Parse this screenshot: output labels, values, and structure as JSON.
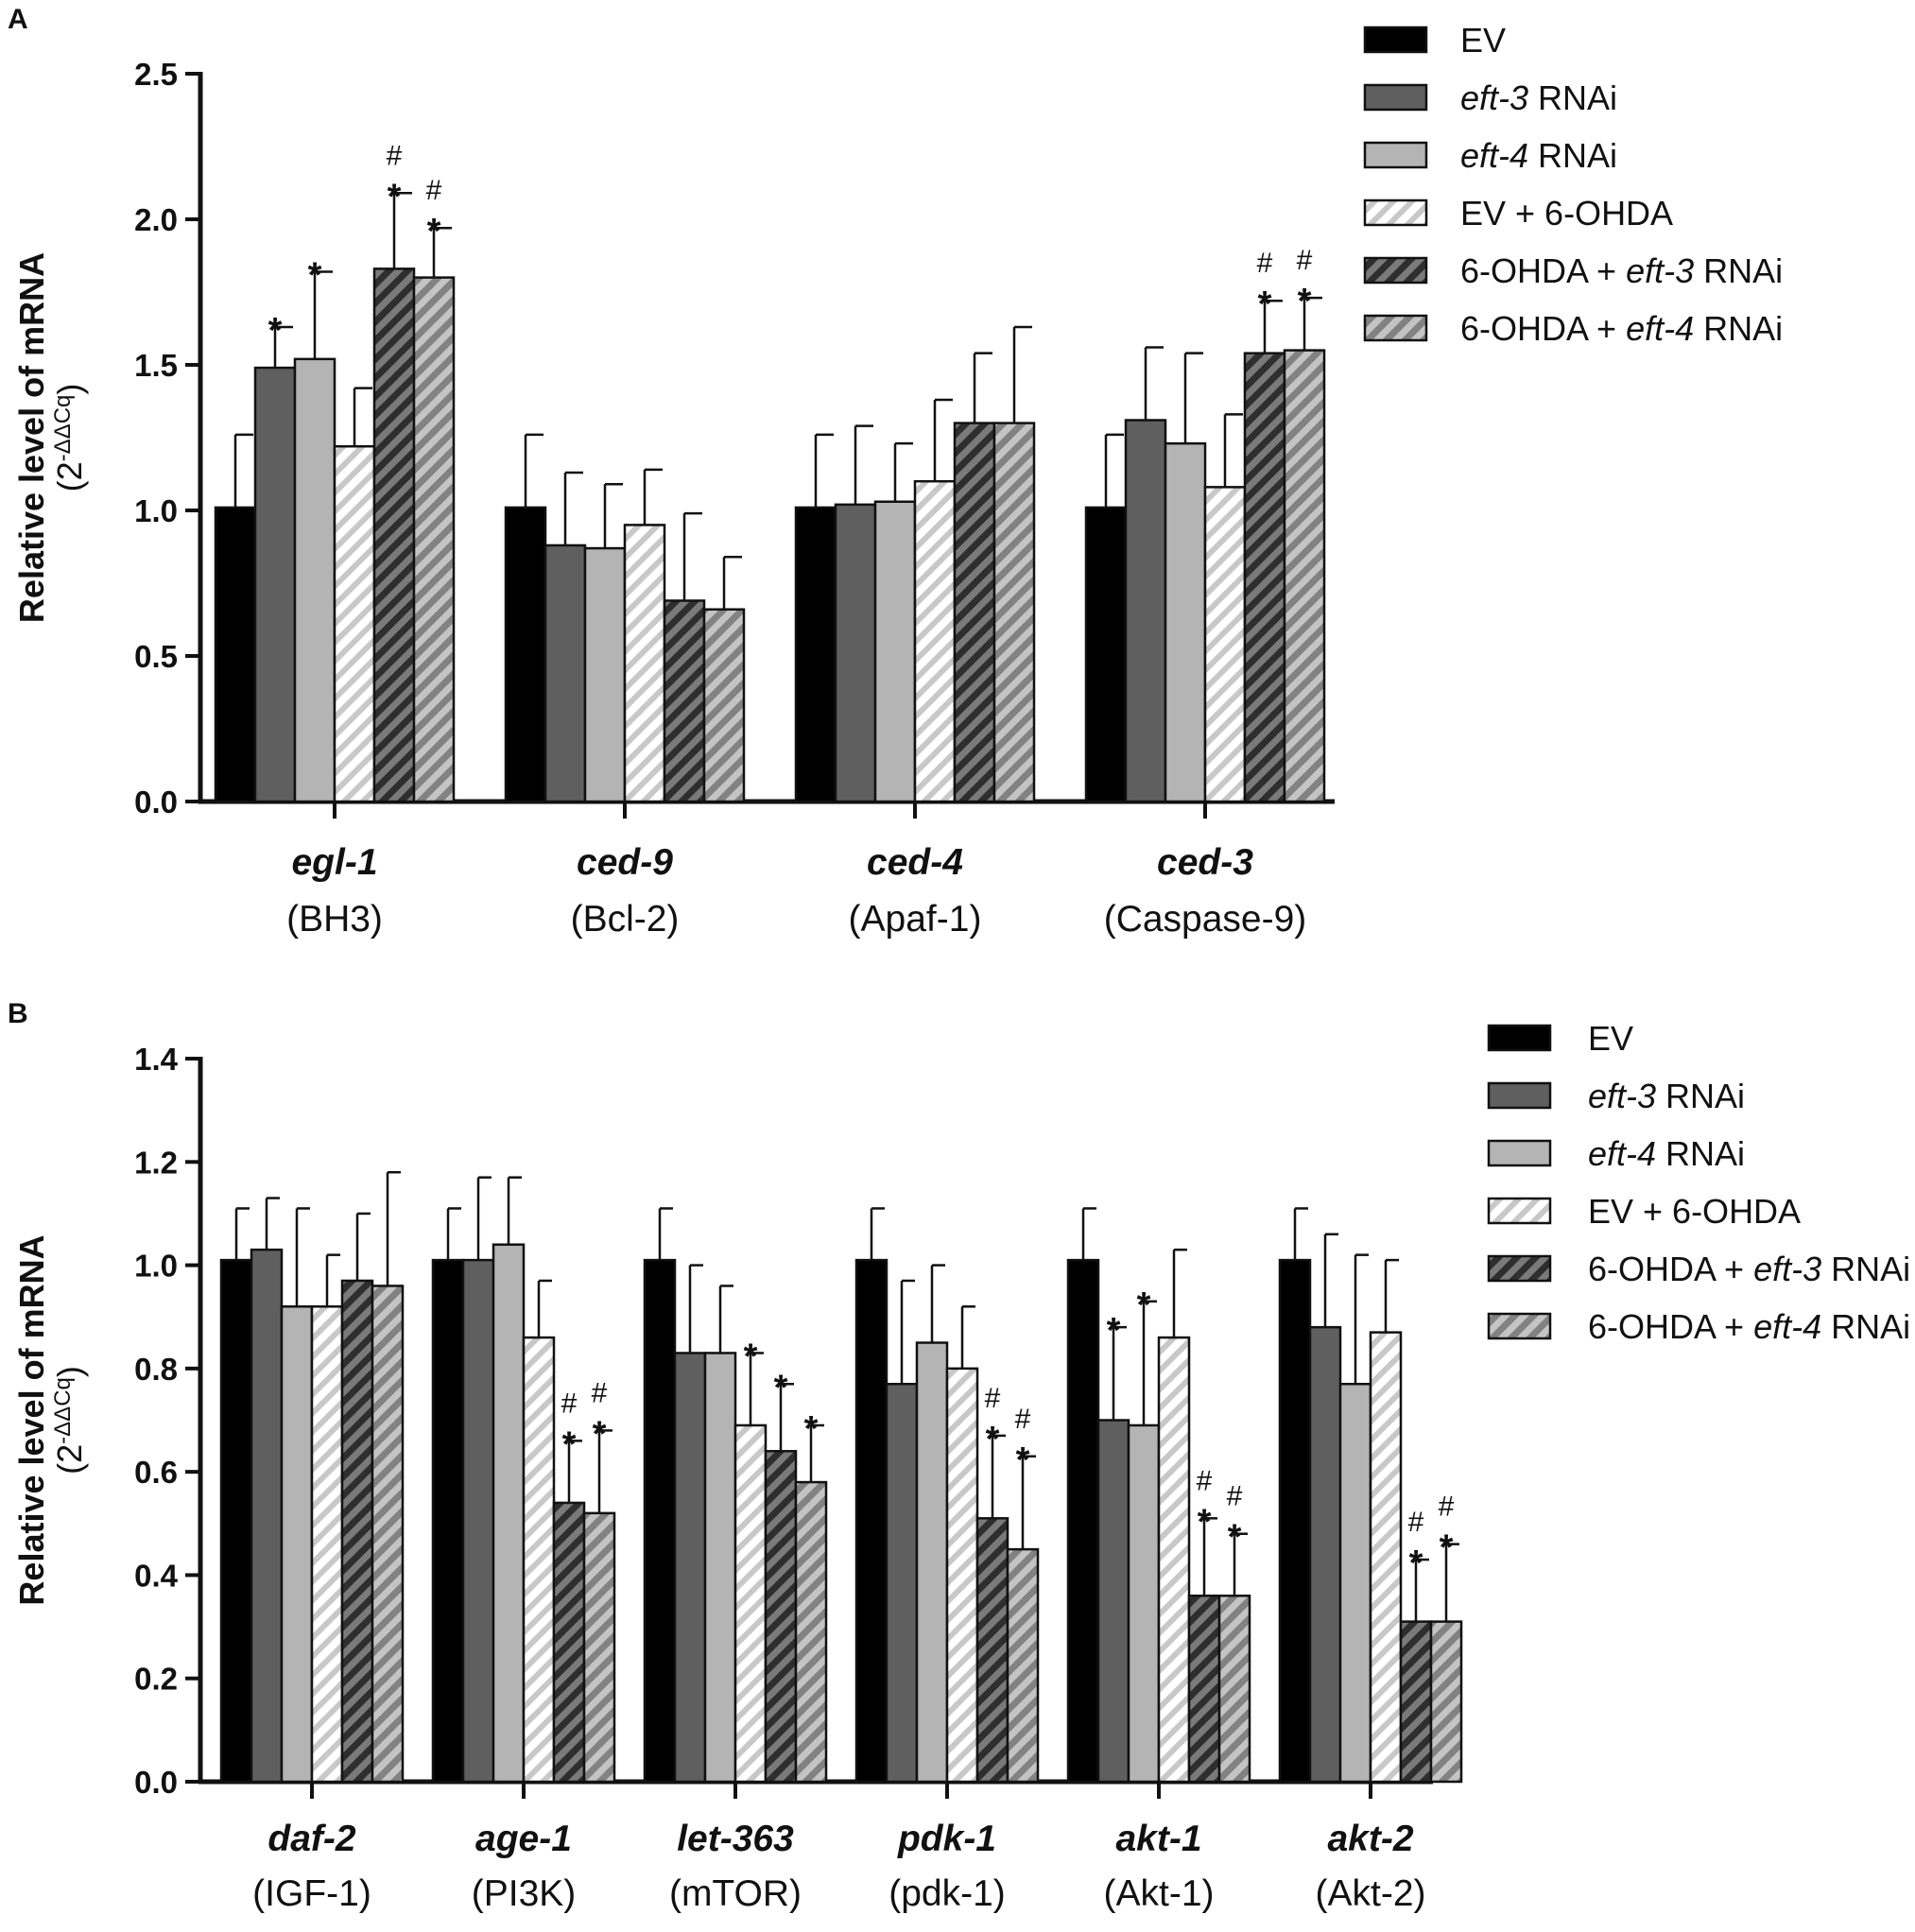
{
  "chart_data": [
    {
      "type": "bar",
      "panel": "A",
      "ylabel": "Relative level of mRNA",
      "ylabel_sub": "(2",
      "ylabel_sup": "-ΔΔCq",
      "ylabel_close": ")",
      "ylim": [
        0,
        2.5
      ],
      "yticks": [
        0.0,
        0.5,
        1.0,
        1.5,
        2.0,
        2.5
      ],
      "ytick_labels": [
        "0.0",
        "0.5",
        "1.0",
        "1.5",
        "2.0",
        "2.5"
      ],
      "categories": [
        {
          "gene": "egl-1",
          "protein": "(BH3)"
        },
        {
          "gene": "ced-9",
          "protein": "(Bcl-2)"
        },
        {
          "gene": "ced-4",
          "protein": "(Apaf-1)"
        },
        {
          "gene": "ced-3",
          "protein": "(Caspase-9)"
        }
      ],
      "series": [
        {
          "name": "EV",
          "values": [
            1.01,
            1.01,
            1.01,
            1.01
          ],
          "errors": [
            0.25,
            0.25,
            0.25,
            0.25
          ],
          "marks": [
            "",
            "",
            "",
            ""
          ]
        },
        {
          "name": "eft-3 RNAi",
          "values": [
            1.49,
            0.88,
            1.02,
            1.31
          ],
          "errors": [
            0.14,
            0.25,
            0.27,
            0.25
          ],
          "marks": [
            "*",
            "",
            "",
            ""
          ]
        },
        {
          "name": "eft-4 RNAi",
          "values": [
            1.52,
            0.87,
            1.03,
            1.23
          ],
          "errors": [
            0.3,
            0.22,
            0.2,
            0.31
          ],
          "marks": [
            "*",
            "",
            "",
            ""
          ]
        },
        {
          "name": "EV + 6-OHDA",
          "values": [
            1.22,
            0.95,
            1.1,
            1.08
          ],
          "errors": [
            0.2,
            0.19,
            0.28,
            0.25
          ],
          "marks": [
            "",
            "",
            "",
            ""
          ]
        },
        {
          "name": "6-OHDA + eft-3 RNAi",
          "values": [
            1.83,
            0.69,
            1.3,
            1.54
          ],
          "errors": [
            0.26,
            0.3,
            0.24,
            0.18
          ],
          "marks": [
            "*#",
            "",
            "",
            "*#"
          ]
        },
        {
          "name": "6-OHDA + eft-4 RNAi",
          "values": [
            1.8,
            0.66,
            1.3,
            1.55
          ],
          "errors": [
            0.17,
            0.18,
            0.33,
            0.18
          ],
          "marks": [
            "*#",
            "",
            "",
            "*#"
          ]
        }
      ]
    },
    {
      "type": "bar",
      "panel": "B",
      "ylabel": "Relative level of mRNA",
      "ylabel_sub": "(2",
      "ylabel_sup": "-ΔΔCq",
      "ylabel_close": ")",
      "ylim": [
        0,
        1.4
      ],
      "yticks": [
        0.0,
        0.2,
        0.4,
        0.6,
        0.8,
        1.0,
        1.2,
        1.4
      ],
      "ytick_labels": [
        "0.0",
        "0.2",
        "0.4",
        "0.6",
        "0.8",
        "1.0",
        "1.2",
        "1.4"
      ],
      "categories": [
        {
          "gene": "daf-2",
          "protein": "(IGF-1)"
        },
        {
          "gene": "age-1",
          "protein": "(PI3K)"
        },
        {
          "gene": "let-363",
          "protein": "(mTOR)"
        },
        {
          "gene": "pdk-1",
          "protein": "(pdk-1)"
        },
        {
          "gene": "akt-1",
          "protein": "(Akt-1)"
        },
        {
          "gene": "akt-2",
          "protein": "(Akt-2)"
        }
      ],
      "series": [
        {
          "name": "EV",
          "values": [
            1.01,
            1.01,
            1.01,
            1.01,
            1.01,
            1.01
          ],
          "errors": [
            0.1,
            0.1,
            0.1,
            0.1,
            0.1,
            0.1
          ],
          "marks": [
            "",
            "",
            "",
            "",
            "",
            ""
          ]
        },
        {
          "name": "eft-3 RNAi",
          "values": [
            1.03,
            1.01,
            0.83,
            0.77,
            0.7,
            0.88
          ],
          "errors": [
            0.1,
            0.16,
            0.17,
            0.2,
            0.18,
            0.18
          ],
          "marks": [
            "",
            "",
            "",
            "",
            "*",
            ""
          ]
        },
        {
          "name": "eft-4 RNAi",
          "values": [
            0.92,
            1.04,
            0.83,
            0.85,
            0.69,
            0.77
          ],
          "errors": [
            0.19,
            0.13,
            0.13,
            0.15,
            0.24,
            0.25
          ],
          "marks": [
            "",
            "",
            "",
            "",
            "*",
            ""
          ]
        },
        {
          "name": "EV + 6-OHDA",
          "values": [
            0.92,
            0.86,
            0.69,
            0.8,
            0.86,
            0.87
          ],
          "errors": [
            0.1,
            0.11,
            0.14,
            0.12,
            0.17,
            0.14
          ],
          "marks": [
            "",
            "",
            "*",
            "",
            "",
            ""
          ]
        },
        {
          "name": "6-OHDA + eft-3 RNAi",
          "values": [
            0.97,
            0.54,
            0.64,
            0.51,
            0.36,
            0.31
          ],
          "errors": [
            0.13,
            0.12,
            0.13,
            0.16,
            0.15,
            0.12
          ],
          "marks": [
            "",
            "*#",
            "*",
            "*#",
            "*#",
            "*#"
          ]
        },
        {
          "name": "6-OHDA + eft-4 RNAi",
          "values": [
            0.96,
            0.52,
            0.58,
            0.45,
            0.36,
            0.31
          ],
          "errors": [
            0.22,
            0.16,
            0.11,
            0.18,
            0.12,
            0.15
          ],
          "marks": [
            "",
            "*#",
            "*",
            "*#",
            "*#",
            "*#"
          ]
        }
      ]
    }
  ],
  "legend": [
    {
      "italic": "",
      "text": "EV",
      "style": "solid",
      "color": "#000000"
    },
    {
      "italic": "eft-3",
      "text": " RNAi",
      "style": "solid",
      "color": "#5f5f5f"
    },
    {
      "italic": "eft-4",
      "text": " RNAi",
      "style": "solid",
      "color": "#b4b4b4"
    },
    {
      "italic": "",
      "text": "EV + 6-OHDA",
      "style": "hatch",
      "color": "#ffffff"
    },
    {
      "prefix": "6-OHDA + ",
      "italic": "eft-3",
      "text": " RNAi",
      "style": "hatch",
      "color": "#404040"
    },
    {
      "prefix": "6-OHDA + ",
      "italic": "eft-4",
      "text": " RNAi",
      "style": "hatch",
      "color": "#8c8c8c"
    }
  ]
}
